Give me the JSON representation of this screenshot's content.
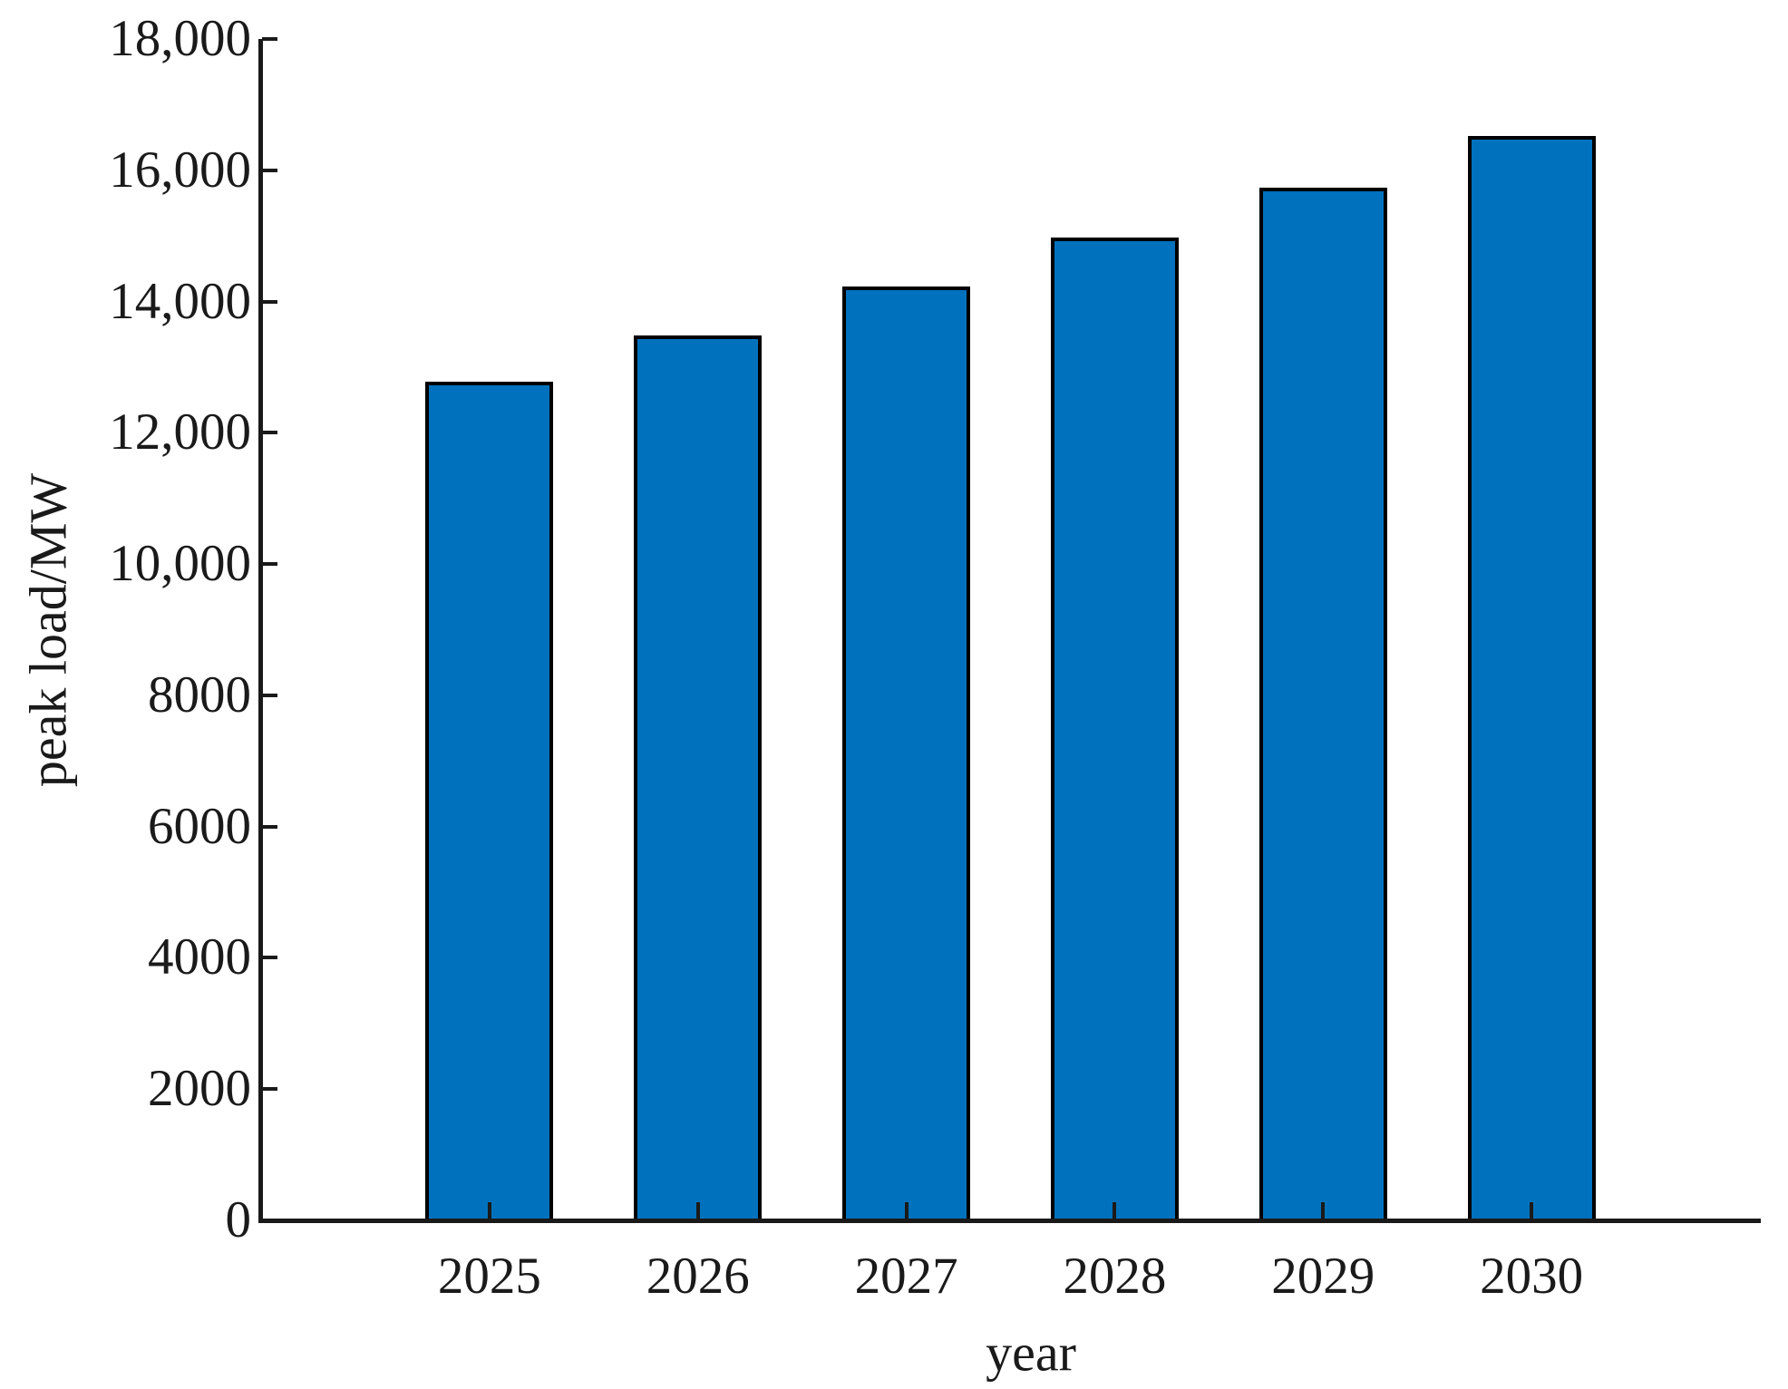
{
  "chart_data": {
    "type": "bar",
    "title": "",
    "xlabel": "year",
    "ylabel": "peak load/MW",
    "categories": [
      "2025",
      "2026",
      "2027",
      "2028",
      "2029",
      "2030"
    ],
    "values": [
      12750,
      13450,
      14200,
      14950,
      15700,
      16500
    ],
    "ylim": [
      0,
      18000
    ],
    "ytick_values": [
      0,
      2000,
      4000,
      6000,
      8000,
      10000,
      12000,
      14000,
      16000,
      18000
    ],
    "ytick_labels": [
      "0",
      "2000",
      "4000",
      "6000",
      "8000",
      "10,000",
      "12,000",
      "14,000",
      "16,000",
      "18,000"
    ],
    "grid": false,
    "legend": null,
    "colors": {
      "bar_fill": "#0072BD",
      "bar_edge": "#000000",
      "axis": "#1a1a1a",
      "background": "#ffffff"
    }
  }
}
